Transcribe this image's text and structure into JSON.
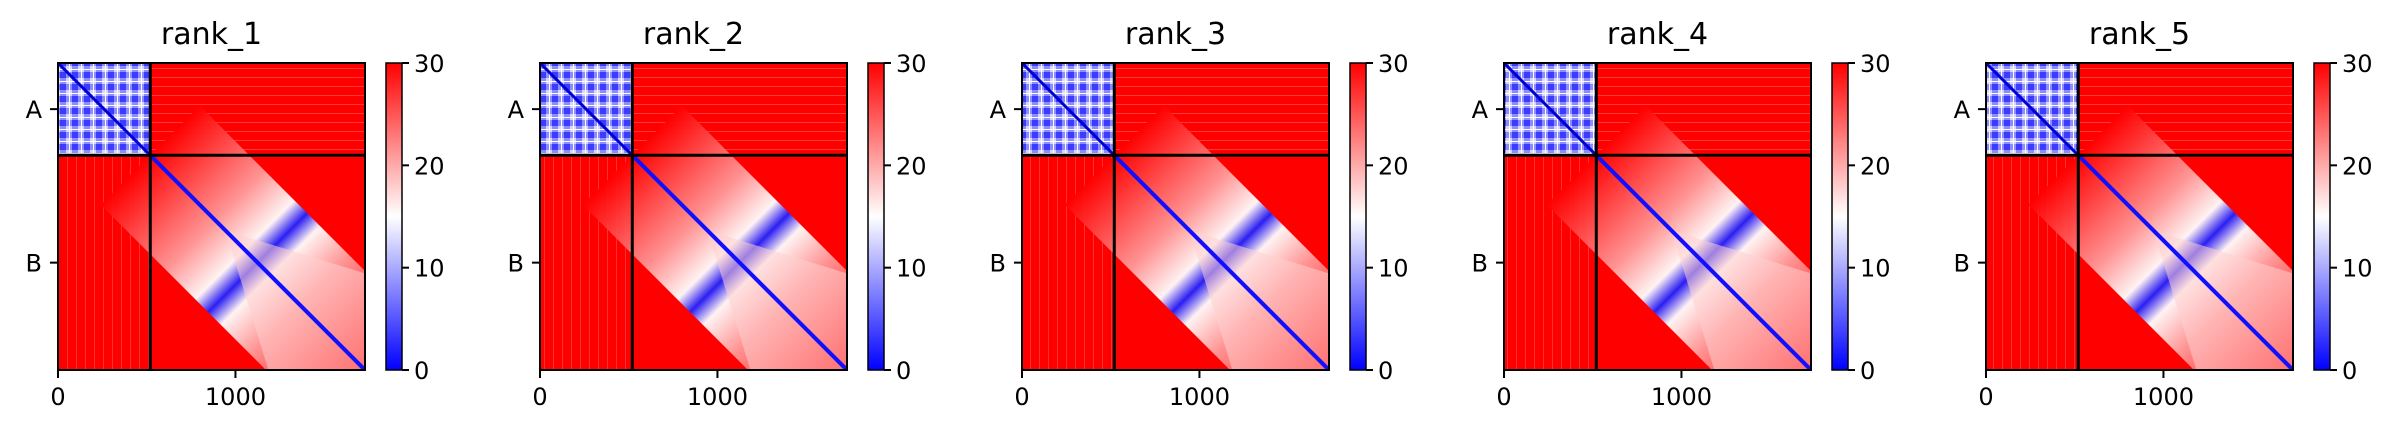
{
  "figure": {
    "colormap": {
      "name": "bwr",
      "low_color": "#0000ff",
      "mid_color": "#ffffff",
      "high_color": "#ff0000",
      "vmin": 0,
      "vmax": 30
    },
    "chain_boundary_residue": 520,
    "total_residues": 1730
  },
  "chart_data": [
    {
      "type": "heatmap",
      "title": "rank_1",
      "xlabel": "",
      "ylabel": "",
      "xlim": [
        0,
        1730
      ],
      "x_ticks": [
        0,
        1000
      ],
      "x_tick_labels": [
        "0",
        "1000"
      ],
      "y_tick_labels": [
        "A",
        "B"
      ],
      "chains": [
        {
          "name": "A",
          "start": 0,
          "end": 520
        },
        {
          "name": "B",
          "start": 520,
          "end": 1730
        }
      ],
      "colorbar": {
        "min": 0,
        "max": 30,
        "ticks": [
          0,
          10,
          20,
          30
        ],
        "tick_labels": [
          "0",
          "10",
          "20",
          "30"
        ]
      },
      "grid": false
    },
    {
      "type": "heatmap",
      "title": "rank_2",
      "xlabel": "",
      "ylabel": "",
      "xlim": [
        0,
        1730
      ],
      "x_ticks": [
        0,
        1000
      ],
      "x_tick_labels": [
        "0",
        "1000"
      ],
      "y_tick_labels": [
        "A",
        "B"
      ],
      "chains": [
        {
          "name": "A",
          "start": 0,
          "end": 520
        },
        {
          "name": "B",
          "start": 520,
          "end": 1730
        }
      ],
      "colorbar": {
        "min": 0,
        "max": 30,
        "ticks": [
          0,
          10,
          20,
          30
        ],
        "tick_labels": [
          "0",
          "10",
          "20",
          "30"
        ]
      },
      "grid": false
    },
    {
      "type": "heatmap",
      "title": "rank_3",
      "xlabel": "",
      "ylabel": "",
      "xlim": [
        0,
        1730
      ],
      "x_ticks": [
        0,
        1000
      ],
      "x_tick_labels": [
        "0",
        "1000"
      ],
      "y_tick_labels": [
        "A",
        "B"
      ],
      "chains": [
        {
          "name": "A",
          "start": 0,
          "end": 520
        },
        {
          "name": "B",
          "start": 520,
          "end": 1730
        }
      ],
      "colorbar": {
        "min": 0,
        "max": 30,
        "ticks": [
          0,
          10,
          20,
          30
        ],
        "tick_labels": [
          "0",
          "10",
          "20",
          "30"
        ]
      },
      "grid": false
    },
    {
      "type": "heatmap",
      "title": "rank_4",
      "xlabel": "",
      "ylabel": "",
      "xlim": [
        0,
        1730
      ],
      "x_ticks": [
        0,
        1000
      ],
      "x_tick_labels": [
        "0",
        "1000"
      ],
      "y_tick_labels": [
        "A",
        "B"
      ],
      "chains": [
        {
          "name": "A",
          "start": 0,
          "end": 520
        },
        {
          "name": "B",
          "start": 520,
          "end": 1730
        }
      ],
      "colorbar": {
        "min": 0,
        "max": 30,
        "ticks": [
          0,
          10,
          20,
          30
        ],
        "tick_labels": [
          "0",
          "10",
          "20",
          "30"
        ]
      },
      "grid": false
    },
    {
      "type": "heatmap",
      "title": "rank_5",
      "xlabel": "",
      "ylabel": "",
      "xlim": [
        0,
        1730
      ],
      "x_ticks": [
        0,
        1000
      ],
      "x_tick_labels": [
        "0",
        "1000"
      ],
      "y_tick_labels": [
        "A",
        "B"
      ],
      "chains": [
        {
          "name": "A",
          "start": 0,
          "end": 520
        },
        {
          "name": "B",
          "start": 520,
          "end": 1730
        }
      ],
      "colorbar": {
        "min": 0,
        "max": 30,
        "ticks": [
          0,
          10,
          20,
          30
        ],
        "tick_labels": [
          "0",
          "10",
          "20",
          "30"
        ]
      },
      "grid": false
    }
  ]
}
